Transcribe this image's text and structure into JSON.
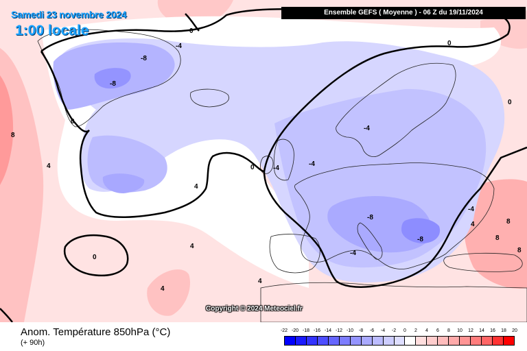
{
  "header": {
    "date": "Samedi 23 novembre 2024",
    "local_time": "1:00 locale",
    "model_info": "Ensemble GEFS  ( Moyenne )  -  06 Z du 19/11/2024"
  },
  "footer": {
    "parameter": "Anom. Température 850hPa (°C)",
    "lead_time": "(+ 90h)",
    "copyright": "Copyright © 2024 Meteociel.fr"
  },
  "legend": {
    "ticks": [
      "-22",
      "-20",
      "-18",
      "-16",
      "-14",
      "-12",
      "-10",
      "-8",
      "-6",
      "-4",
      "-2",
      "0",
      "2",
      "4",
      "6",
      "8",
      "10",
      "12",
      "14",
      "16",
      "18",
      "20"
    ],
    "colors": [
      "#0000ff",
      "#1a1aff",
      "#3333ff",
      "#4d4dff",
      "#6666ff",
      "#7d7dff",
      "#9494ff",
      "#aaaaff",
      "#bcbcff",
      "#cdcdff",
      "#dedeff",
      "#ffffff",
      "#ffdede",
      "#ffcdcd",
      "#ffbcbc",
      "#ffaaaa",
      "#ff9494",
      "#ff7d7d",
      "#ff6666",
      "#ff3333",
      "#ff0000"
    ]
  },
  "map_labels": {
    "zero_lines": [
      "0",
      "0",
      "0",
      "0",
      "0",
      "0"
    ],
    "minus4": [
      "-4",
      "-4",
      "-4",
      "-4",
      "-4",
      "-4"
    ],
    "minus8": [
      "-8",
      "-8",
      "-8",
      "-8"
    ],
    "plus4": [
      "4",
      "4",
      "4",
      "4",
      "4",
      "4"
    ],
    "plus8": [
      "8",
      "8",
      "8",
      "8"
    ]
  }
}
